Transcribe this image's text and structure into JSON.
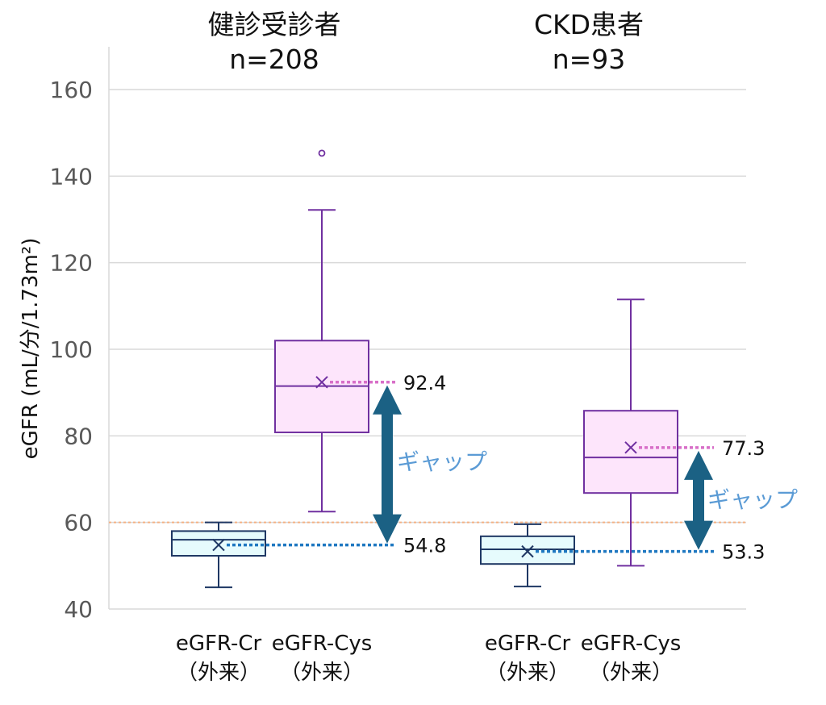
{
  "chart_data": {
    "type": "box",
    "ylabel": "eGFR (mL/分/1.73m²)",
    "ylim": [
      40,
      165
    ],
    "yticks": [
      40,
      60,
      80,
      100,
      120,
      140,
      160
    ],
    "grid": true,
    "reference_line": {
      "value": 60,
      "color": "#f4b183",
      "style": "dotted"
    },
    "groups": [
      {
        "title": "健診受診者",
        "n_label": "n=208",
        "boxes": [
          {
            "label_line1": "eGFR-Cr",
            "label_line2": "（外来）",
            "whisker_low": 45,
            "q1": 52.3,
            "median": 56,
            "q3": 58,
            "whisker_high": 60,
            "mean": 54.8,
            "outliers": [],
            "stroke": "#1f3864",
            "fill": "#e6fbfd"
          },
          {
            "label_line1": "eGFR-Cys",
            "label_line2": "（外来）",
            "whisker_low": 62.5,
            "q1": 80.8,
            "median": 91.5,
            "q3": 102,
            "whisker_high": 132.2,
            "mean": 92.4,
            "outliers": [
              145.3
            ],
            "stroke": "#7030a0",
            "fill": "#fde5fb"
          }
        ],
        "gap": {
          "upper": 92.4,
          "lower": 54.8,
          "upper_label": "92.4",
          "lower_label": "54.8",
          "text": "ギャップ"
        }
      },
      {
        "title": "CKD患者",
        "n_label": "n=93",
        "boxes": [
          {
            "label_line1": "eGFR-Cr",
            "label_line2": "（外来）",
            "whisker_low": 45.2,
            "q1": 50.4,
            "median": 53.8,
            "q3": 56.8,
            "whisker_high": 59.6,
            "mean": 53.3,
            "outliers": [],
            "stroke": "#1f3864",
            "fill": "#e6fbfd"
          },
          {
            "label_line1": "eGFR-Cys",
            "label_line2": "（外来）",
            "whisker_low": 50,
            "q1": 66.8,
            "median": 75,
            "q3": 85.8,
            "whisker_high": 111.5,
            "mean": 77.3,
            "outliers": [],
            "stroke": "#7030a0",
            "fill": "#fde5fb"
          }
        ],
        "gap": {
          "upper": 77.3,
          "lower": 53.3,
          "upper_label": "77.3",
          "lower_label": "53.3",
          "text": "ギャップ"
        }
      }
    ]
  },
  "colors": {
    "arrow": "#1b6184",
    "cr_mean_line": "#1f78c1",
    "cys_mean_line": "#d86fc8",
    "gridline": "#d9d9d9",
    "gap_text": "#5b9bd5"
  }
}
